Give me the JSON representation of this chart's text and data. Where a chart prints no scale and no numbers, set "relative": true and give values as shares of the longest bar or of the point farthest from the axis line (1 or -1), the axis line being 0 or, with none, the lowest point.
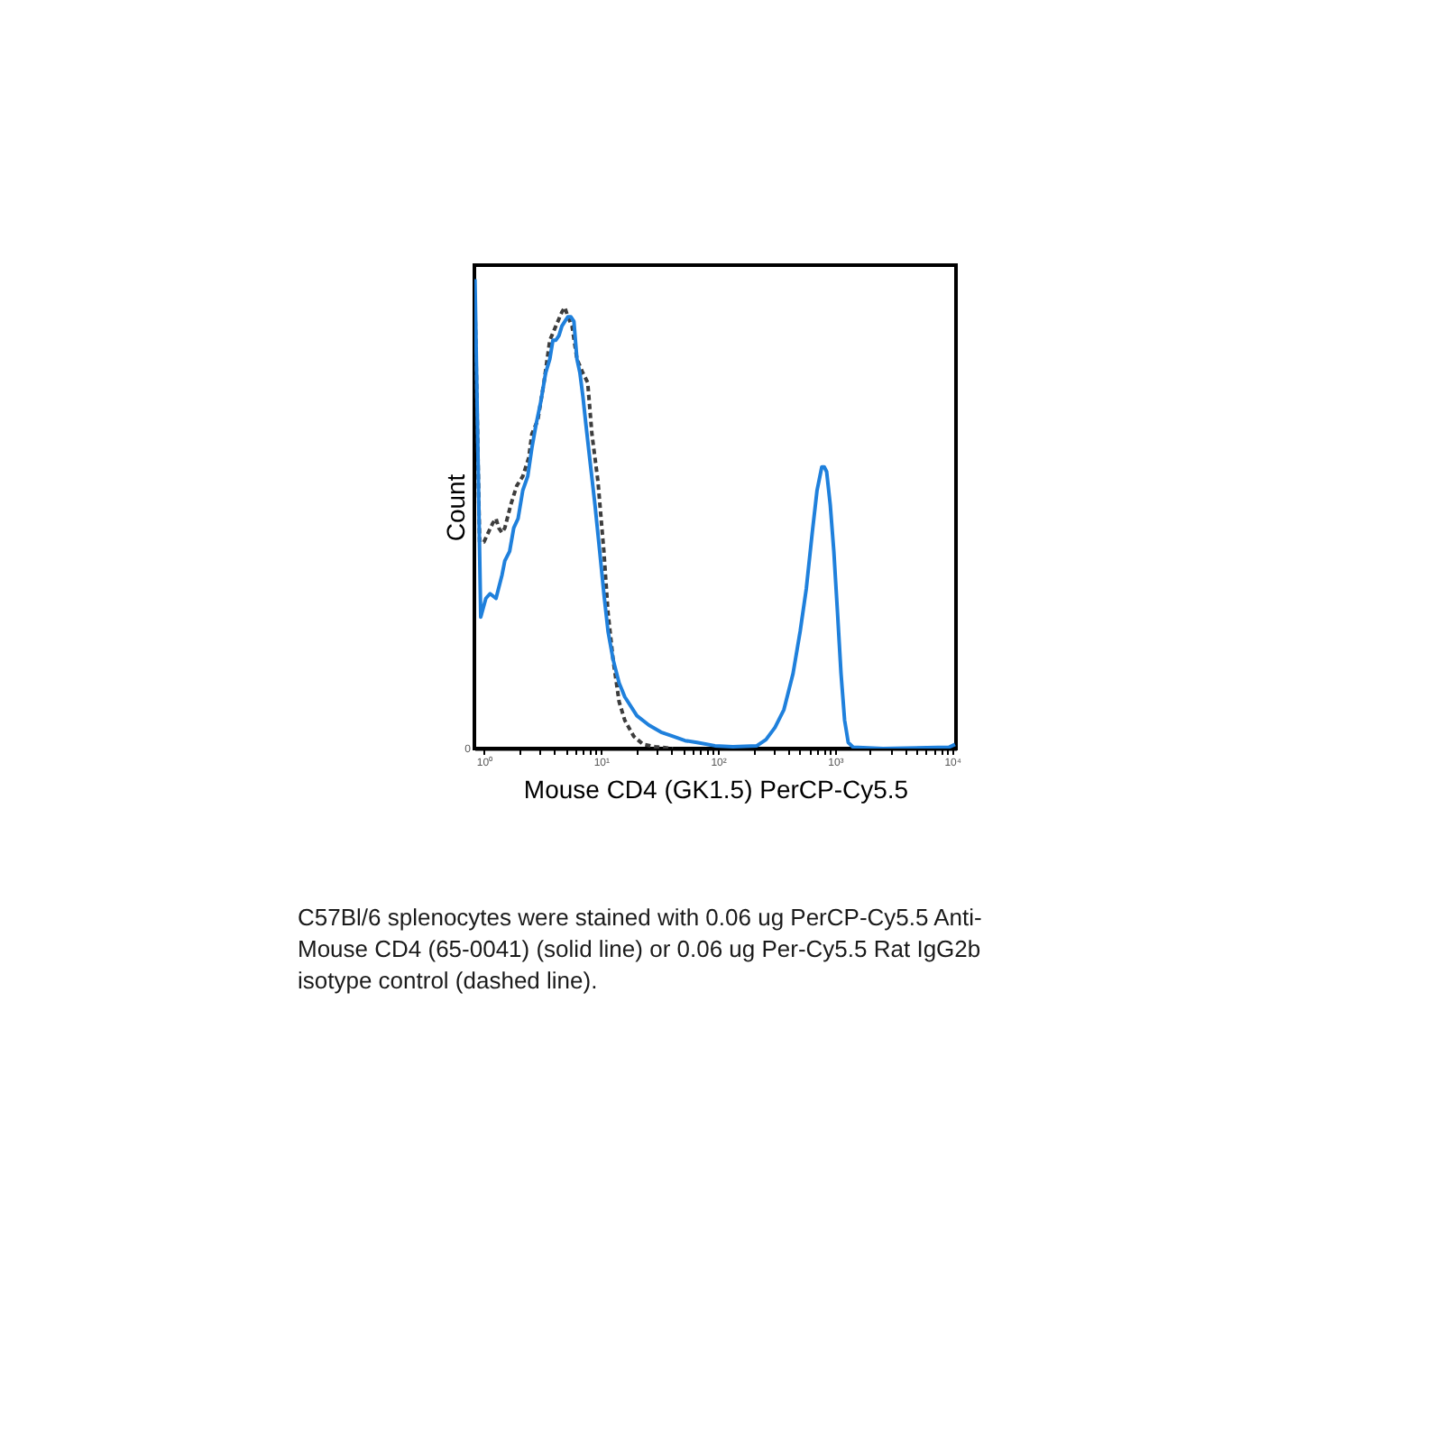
{
  "chart_data": {
    "type": "line",
    "relative": true,
    "log": "x",
    "grid": false,
    "marker": "none",
    "xlabel": "Mouse CD4 (GK1.5) PerCP-Cy5.5",
    "ylabel": "Count",
    "xlim": [
      0.83,
      10800
    ],
    "xticks": [
      {
        "value": 1,
        "label": "10⁰"
      },
      {
        "value": 2,
        "label": null
      },
      {
        "value": 3,
        "label": null
      },
      {
        "value": 4,
        "label": null
      },
      {
        "value": 5,
        "label": null
      },
      {
        "value": 6,
        "label": null
      },
      {
        "value": 7,
        "label": null
      },
      {
        "value": 8,
        "label": null
      },
      {
        "value": 9,
        "label": null
      },
      {
        "value": 10,
        "label": "10¹"
      },
      {
        "value": 20,
        "label": null
      },
      {
        "value": 30,
        "label": null
      },
      {
        "value": 40,
        "label": null
      },
      {
        "value": 50,
        "label": null
      },
      {
        "value": 60,
        "label": null
      },
      {
        "value": 70,
        "label": null
      },
      {
        "value": 80,
        "label": null
      },
      {
        "value": 90,
        "label": null
      },
      {
        "value": 100,
        "label": "10²"
      },
      {
        "value": 200,
        "label": null
      },
      {
        "value": 300,
        "label": null
      },
      {
        "value": 400,
        "label": null
      },
      {
        "value": 500,
        "label": null
      },
      {
        "value": 600,
        "label": null
      },
      {
        "value": 700,
        "label": null
      },
      {
        "value": 800,
        "label": null
      },
      {
        "value": 900,
        "label": null
      },
      {
        "value": 1000,
        "label": "10³"
      },
      {
        "value": 2000,
        "label": null
      },
      {
        "value": 3000,
        "label": null
      },
      {
        "value": 4000,
        "label": null
      },
      {
        "value": 5000,
        "label": null
      },
      {
        "value": 6000,
        "label": null
      },
      {
        "value": 7000,
        "label": null
      },
      {
        "value": 8000,
        "label": null
      },
      {
        "value": 9000,
        "label": null
      },
      {
        "value": 10000,
        "label": "10⁴"
      }
    ],
    "series": [
      {
        "line_style": "dashed",
        "color": "#3d3d3d",
        "x": [
          0.84,
          0.92,
          1.0,
          1.09,
          1.19,
          1.27,
          1.34,
          1.43,
          1.51,
          1.7,
          1.91,
          2.15,
          2.42,
          2.57,
          2.89,
          3.26,
          3.66,
          4.12,
          4.64,
          4.92,
          5.22,
          5.67,
          6.24,
          7.02,
          7.71,
          8.38,
          9.43,
          10.6,
          11.5,
          12.7,
          14.3,
          16,
          19.1,
          22.9,
          28.9,
          41.2
        ],
        "values": [
          0.95,
          0.44,
          0.44,
          0.46,
          0.48,
          0.49,
          0.47,
          0.46,
          0.47,
          0.52,
          0.56,
          0.58,
          0.62,
          0.67,
          0.7,
          0.78,
          0.87,
          0.9,
          0.93,
          0.94,
          0.92,
          0.9,
          0.83,
          0.8,
          0.78,
          0.67,
          0.57,
          0.42,
          0.29,
          0.19,
          0.1,
          0.06,
          0.026,
          0.009,
          0.004,
          0
        ]
      },
      {
        "line_style": "solid",
        "color": "#1f80dc",
        "x": [
          0.84,
          0.94,
          1.04,
          1.13,
          1.27,
          1.43,
          1.51,
          1.66,
          1.8,
          1.96,
          2.15,
          2.37,
          2.57,
          2.79,
          3.07,
          3.37,
          3.66,
          3.89,
          4.12,
          4.38,
          4.64,
          4.92,
          5.22,
          5.54,
          5.88,
          6.24,
          6.62,
          7.02,
          7.45,
          8.09,
          8.89,
          9.77,
          10.6,
          11.5,
          12.7,
          14.3,
          16,
          20.3,
          25.7,
          32.6,
          41.2,
          52.2,
          66.2,
          94.2,
          134,
          215,
          257,
          307,
          366,
          438,
          504,
          568,
          639,
          702,
          771,
          809,
          848,
          910,
          977,
          1050,
          1125,
          1208,
          1297,
          1426,
          2570,
          9420,
          10600
        ],
        "values": [
          1.0,
          0.28,
          0.32,
          0.33,
          0.32,
          0.37,
          0.4,
          0.42,
          0.47,
          0.49,
          0.55,
          0.58,
          0.64,
          0.69,
          0.74,
          0.8,
          0.83,
          0.87,
          0.87,
          0.88,
          0.9,
          0.91,
          0.92,
          0.92,
          0.91,
          0.83,
          0.8,
          0.75,
          0.69,
          0.61,
          0.52,
          0.42,
          0.33,
          0.25,
          0.19,
          0.14,
          0.11,
          0.07,
          0.05,
          0.035,
          0.026,
          0.017,
          0.013,
          0.006,
          0.004,
          0.006,
          0.019,
          0.045,
          0.083,
          0.16,
          0.25,
          0.34,
          0.46,
          0.55,
          0.6,
          0.6,
          0.59,
          0.52,
          0.42,
          0.29,
          0.16,
          0.06,
          0.013,
          0.003,
          0,
          0.003,
          0.009
        ]
      }
    ],
    "annotations": [
      "0",
      "C57Bl/6 splenocytes were stained with 0.06 ug PerCP-Cy5.5 Anti-\nMouse CD4 (65-0041) (solid line) or 0.06 ug Per-Cy5.5 Rat IgG2b\nisotype control (dashed line)."
    ]
  }
}
